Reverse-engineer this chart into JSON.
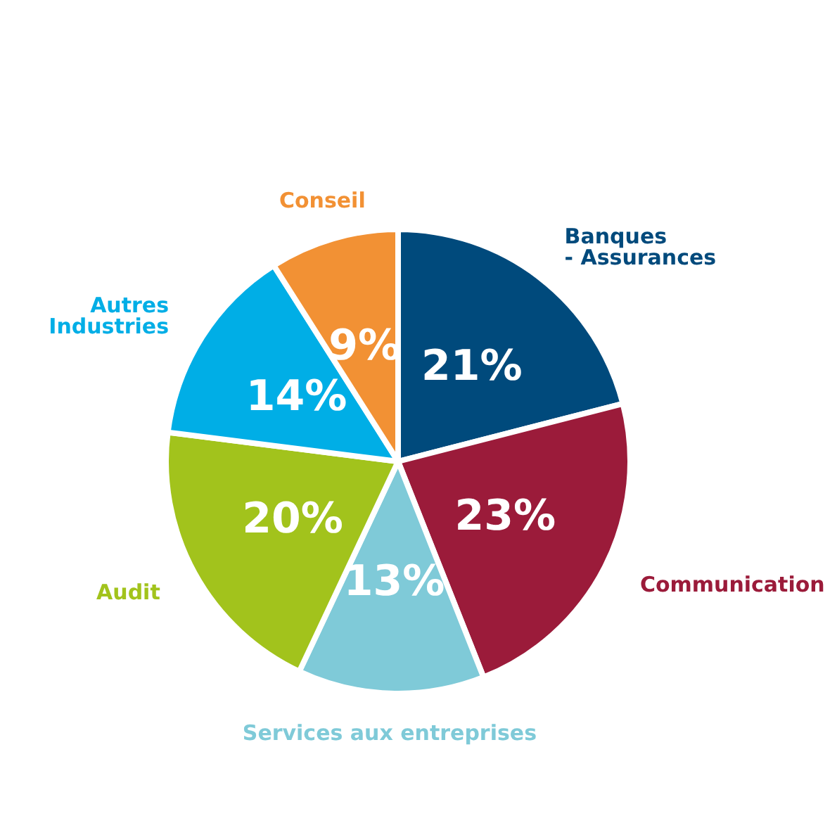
{
  "chart_data": {
    "type": "pie",
    "categories": [
      "Banques\n- Assurances",
      "Communication",
      "Services aux entreprises",
      "Audit",
      "Autres\nIndustries",
      "Conseil"
    ],
    "values": [
      21,
      23,
      13,
      20,
      14,
      9
    ],
    "value_labels": [
      "21%",
      "23%",
      "13%",
      "20%",
      "14%",
      "9%"
    ],
    "colors": [
      "#004a7c",
      "#9b1b3a",
      "#7fcad8",
      "#a2c31c",
      "#00aee6",
      "#f29134"
    ],
    "legend": false
  }
}
